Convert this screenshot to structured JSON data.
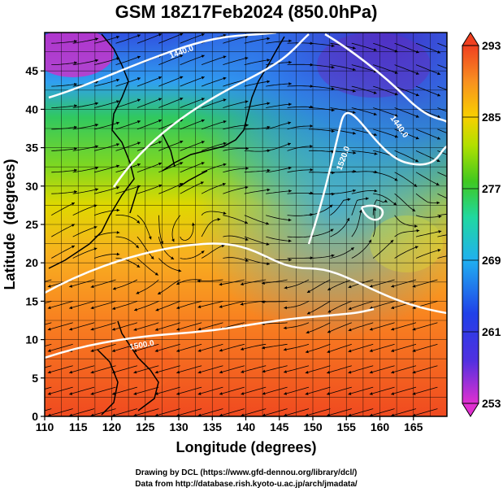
{
  "title": "GSM 18Z17Feb2024 (850.0hPa)",
  "x_axis": {
    "label": "Longitude (degrees)",
    "range": [
      110,
      170
    ],
    "ticks": [
      110,
      115,
      120,
      125,
      130,
      135,
      140,
      145,
      150,
      155,
      160,
      165
    ]
  },
  "y_axis": {
    "label": "Latitude  (degrees)",
    "range": [
      0,
      50
    ],
    "ticks": [
      0,
      5,
      10,
      15,
      20,
      25,
      30,
      35,
      40,
      45
    ]
  },
  "colorbar": {
    "labels": [
      293,
      285,
      277,
      269,
      261,
      253
    ],
    "range": [
      253,
      293
    ],
    "colors": [
      "#d020c8",
      "#2020d8",
      "#30a0f0",
      "#20d8b0",
      "#40c020",
      "#b8e000",
      "#f8d000",
      "#f89020",
      "#f05020"
    ]
  },
  "contour_labels": [
    "1440.0",
    "1500.0",
    "1520.0",
    "1440.0",
    "1360.0"
  ],
  "credits": {
    "line1": "Drawing by DCL (https://www.gfd-dennou.org/library/dcl/)",
    "line2": "Data from http://database.rish.kyoto-u.ac.jp/arch/jmadata/"
  }
}
